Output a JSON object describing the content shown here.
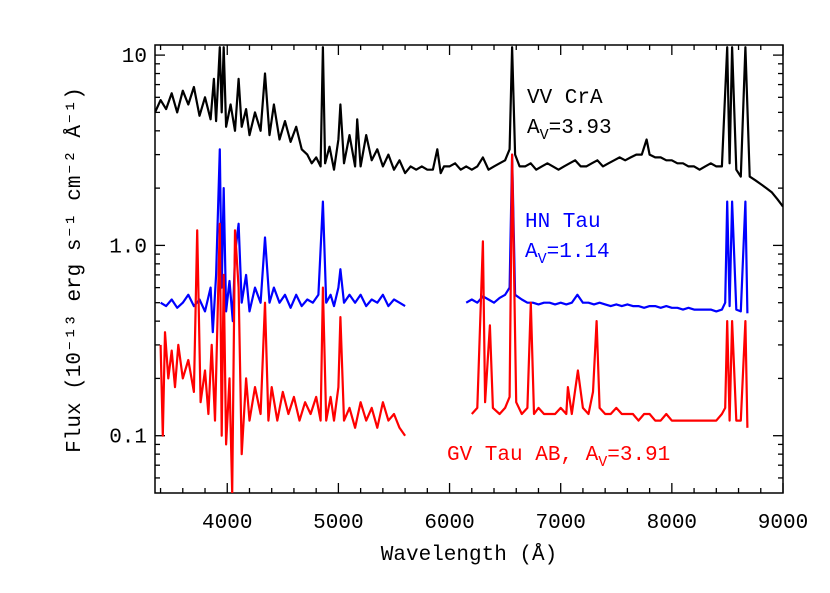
{
  "chart_data": {
    "type": "line",
    "xlabel": "Wavelength (Å)",
    "ylabel": "Flux (10⁻¹³ erg s⁻¹ cm⁻² Å⁻¹)",
    "xlim": [
      3350,
      9000
    ],
    "ylim": [
      0.05,
      11.3
    ],
    "ylog": true,
    "xticks": [
      4000,
      5000,
      6000,
      7000,
      8000,
      9000
    ],
    "xminorticks": [
      3400,
      3600,
      3800,
      4200,
      4400,
      4600,
      4800,
      5200,
      5400,
      5600,
      5800,
      6200,
      6400,
      6600,
      6800,
      7200,
      7400,
      7600,
      7800,
      8200,
      8400,
      8600,
      8800
    ],
    "yticks": [
      10,
      {
        "value": 1,
        "label": "1.0"
      },
      0.1
    ],
    "yminorticks": [
      0.06,
      0.07,
      0.08,
      0.09,
      0.2,
      0.3,
      0.4,
      0.5,
      0.6,
      0.7,
      0.8,
      0.9,
      2,
      3,
      4,
      5,
      6,
      7,
      8,
      9
    ],
    "series": [
      {
        "name": "VV CrA",
        "color": "#000000",
        "x": [
          3350,
          3400,
          3450,
          3500,
          3550,
          3600,
          3650,
          3700,
          3750,
          3800,
          3850,
          3880,
          3900,
          3933,
          3950,
          3968,
          3990,
          4030,
          4070,
          4102,
          4130,
          4170,
          4200,
          4250,
          4300,
          4340,
          4380,
          4420,
          4470,
          4520,
          4570,
          4620,
          4670,
          4720,
          4760,
          4800,
          4840,
          4861,
          4880,
          4920,
          4960,
          5000,
          5018,
          5050,
          5100,
          5150,
          5169,
          5200,
          5250,
          5300,
          5350,
          5400,
          5450,
          5500,
          5550,
          5600,
          5650,
          5700,
          5750,
          5800,
          5850,
          5890,
          5920,
          5950,
          6000,
          6050,
          6100,
          6150,
          6200,
          6250,
          6300,
          6350,
          6400,
          6450,
          6500,
          6540,
          6563,
          6590,
          6630,
          6680,
          6730,
          6780,
          6830,
          6880,
          6930,
          6980,
          7030,
          7080,
          7130,
          7180,
          7230,
          7280,
          7330,
          7380,
          7430,
          7480,
          7530,
          7580,
          7630,
          7680,
          7730,
          7773,
          7800,
          7850,
          7900,
          7950,
          8000,
          8050,
          8100,
          8150,
          8200,
          8250,
          8300,
          8350,
          8400,
          8450,
          8498,
          8520,
          8542,
          8580,
          8620,
          8662,
          8700,
          8750,
          8800,
          8850,
          8900,
          8950,
          9000
        ],
        "values": [
          5.0,
          5.8,
          5.2,
          6.3,
          5.0,
          6.5,
          5.5,
          6.8,
          4.8,
          6.0,
          4.6,
          7.5,
          4.5,
          11,
          5.0,
          11,
          4.2,
          5.5,
          4.0,
          7.5,
          4.2,
          5.2,
          3.8,
          5.0,
          4.0,
          8.0,
          3.8,
          5.5,
          3.6,
          4.5,
          3.5,
          4.2,
          3.2,
          3.0,
          2.7,
          2.9,
          2.6,
          11,
          2.7,
          3.3,
          2.5,
          3.6,
          5.5,
          2.7,
          3.8,
          2.6,
          4.6,
          2.6,
          3.8,
          2.8,
          3.2,
          2.6,
          3.0,
          2.5,
          2.8,
          2.4,
          2.6,
          2.5,
          2.6,
          2.5,
          2.5,
          3.2,
          2.4,
          2.6,
          2.6,
          2.7,
          2.5,
          2.6,
          2.5,
          2.6,
          2.9,
          2.5,
          2.6,
          2.7,
          2.8,
          3.2,
          11,
          3.0,
          2.6,
          2.6,
          2.7,
          2.5,
          2.6,
          2.7,
          2.6,
          2.5,
          2.6,
          2.7,
          2.8,
          2.6,
          2.6,
          2.7,
          2.8,
          2.6,
          2.7,
          2.8,
          2.9,
          2.8,
          2.9,
          3.0,
          3.0,
          3.6,
          3.0,
          2.9,
          2.9,
          2.8,
          2.8,
          2.7,
          2.7,
          2.6,
          2.6,
          2.5,
          2.6,
          2.7,
          2.6,
          2.6,
          11,
          2.7,
          11,
          2.5,
          2.3,
          11,
          2.3,
          2.2,
          2.1,
          2.0,
          1.9,
          1.75,
          1.6
        ]
      },
      {
        "name": "HN Tau",
        "color": "#0000ff",
        "x": [
          3400,
          3450,
          3500,
          3550,
          3600,
          3650,
          3700,
          3750,
          3800,
          3850,
          3870,
          3900,
          3933,
          3950,
          3968,
          3990,
          4020,
          4050,
          4070,
          4102,
          4130,
          4170,
          4200,
          4250,
          4300,
          4340,
          4380,
          4420,
          4470,
          4520,
          4570,
          4620,
          4670,
          4720,
          4770,
          4820,
          4861,
          4890,
          4930,
          4960,
          5000,
          5018,
          5050,
          5100,
          5150,
          5200,
          5250,
          5300,
          5350,
          5400,
          5450,
          5500,
          5550,
          5600,
          5800,
          6150,
          6200,
          6250,
          6300,
          6350,
          6400,
          6450,
          6500,
          6540,
          6563,
          6590,
          6650,
          6700,
          6750,
          6800,
          6850,
          6900,
          6950,
          7000,
          7050,
          7100,
          7150,
          7200,
          7250,
          7300,
          7350,
          7400,
          7450,
          7500,
          7550,
          7600,
          7650,
          7700,
          7750,
          7800,
          7850,
          7900,
          7950,
          8000,
          8050,
          8100,
          8150,
          8200,
          8250,
          8300,
          8350,
          8400,
          8450,
          8480,
          8498,
          8520,
          8542,
          8580,
          8620,
          8662,
          8680
        ],
        "values": [
          0.5,
          0.48,
          0.52,
          0.47,
          0.5,
          0.55,
          0.48,
          0.52,
          0.45,
          0.6,
          0.35,
          0.7,
          3.2,
          0.6,
          2.0,
          0.45,
          0.65,
          0.4,
          0.9,
          1.3,
          0.5,
          0.7,
          0.45,
          0.6,
          0.5,
          1.1,
          0.5,
          0.6,
          0.5,
          0.55,
          0.47,
          0.55,
          0.48,
          0.52,
          0.5,
          0.55,
          1.7,
          0.5,
          0.55,
          0.48,
          0.6,
          0.75,
          0.5,
          0.55,
          0.5,
          0.55,
          0.48,
          0.52,
          0.5,
          0.55,
          0.48,
          0.52,
          0.5,
          0.48,
          null,
          0.5,
          0.52,
          0.5,
          0.54,
          0.52,
          0.5,
          0.53,
          0.55,
          0.6,
          3.0,
          0.55,
          0.52,
          0.5,
          0.5,
          0.49,
          0.5,
          0.5,
          0.49,
          0.5,
          0.49,
          0.5,
          0.55,
          0.5,
          0.5,
          0.49,
          0.5,
          0.49,
          0.48,
          0.49,
          0.48,
          0.49,
          0.48,
          0.48,
          0.47,
          0.48,
          0.48,
          0.47,
          0.48,
          0.47,
          0.47,
          0.46,
          0.47,
          0.46,
          0.46,
          0.46,
          0.46,
          0.45,
          0.46,
          0.5,
          1.7,
          0.48,
          1.7,
          0.46,
          0.45,
          1.7,
          0.44
        ]
      },
      {
        "name": "GV Tau AB",
        "color": "#ff0000",
        "x": [
          3400,
          3420,
          3440,
          3470,
          3500,
          3530,
          3560,
          3600,
          3650,
          3700,
          3730,
          3760,
          3800,
          3830,
          3860,
          3890,
          3910,
          3933,
          3950,
          3968,
          3990,
          4020,
          4045,
          4070,
          4102,
          4130,
          4170,
          4200,
          4250,
          4300,
          4340,
          4370,
          4400,
          4450,
          4500,
          4550,
          4600,
          4650,
          4700,
          4750,
          4800,
          4840,
          4861,
          4890,
          4930,
          4960,
          5000,
          5018,
          5050,
          5100,
          5150,
          5200,
          5250,
          5300,
          5350,
          5400,
          5450,
          5500,
          5550,
          5600,
          5800,
          6200,
          6250,
          6300,
          6320,
          6363,
          6390,
          6450,
          6500,
          6540,
          6563,
          6600,
          6650,
          6700,
          6731,
          6760,
          6800,
          6850,
          6900,
          6950,
          7000,
          7050,
          7065,
          7100,
          7155,
          7200,
          7250,
          7291,
          7323,
          7350,
          7400,
          7450,
          7500,
          7550,
          7600,
          7650,
          7700,
          7750,
          7800,
          7850,
          7900,
          7950,
          8000,
          8050,
          8100,
          8150,
          8200,
          8250,
          8300,
          8350,
          8400,
          8450,
          8480,
          8498,
          8520,
          8542,
          8580,
          8620,
          8662,
          8680
        ],
        "values": [
          0.3,
          0.1,
          0.35,
          0.2,
          0.28,
          0.18,
          0.3,
          0.2,
          0.25,
          0.17,
          1.2,
          0.15,
          0.22,
          0.13,
          0.3,
          0.12,
          0.35,
          1.3,
          0.1,
          0.7,
          0.09,
          0.2,
          0.05,
          1.2,
          0.6,
          0.08,
          0.2,
          0.12,
          0.18,
          0.13,
          0.5,
          0.12,
          0.18,
          0.12,
          0.17,
          0.13,
          0.16,
          0.12,
          0.15,
          0.13,
          0.16,
          0.12,
          0.6,
          0.12,
          0.16,
          0.12,
          0.18,
          0.42,
          0.12,
          0.14,
          0.11,
          0.15,
          0.12,
          0.14,
          0.11,
          0.15,
          0.12,
          0.13,
          0.11,
          0.1,
          null,
          0.13,
          0.14,
          1.05,
          0.15,
          0.38,
          0.14,
          0.13,
          0.14,
          0.16,
          3.0,
          0.15,
          0.13,
          0.14,
          0.5,
          0.13,
          0.14,
          0.13,
          0.13,
          0.13,
          0.14,
          0.13,
          0.18,
          0.13,
          0.22,
          0.14,
          0.13,
          0.17,
          0.4,
          0.14,
          0.13,
          0.13,
          0.14,
          0.13,
          0.13,
          0.13,
          0.12,
          0.13,
          0.13,
          0.12,
          0.12,
          0.13,
          0.12,
          0.12,
          0.12,
          0.12,
          0.12,
          0.12,
          0.12,
          0.12,
          0.12,
          0.13,
          0.14,
          0.4,
          0.12,
          0.4,
          0.12,
          0.12,
          0.4,
          0.11
        ]
      }
    ],
    "annotations": [
      {
        "color": "#000000",
        "lines": [
          [
            "VV CrA"
          ],
          [
            "A",
            "V",
            "=3.93"
          ]
        ]
      },
      {
        "color": "#0000ff",
        "lines": [
          [
            "HN Tau"
          ],
          [
            "A",
            "V",
            "=1.14"
          ]
        ]
      },
      {
        "color": "#ff0000",
        "lines": [
          [
            "GV Tau AB, A",
            "V",
            "=3.91"
          ]
        ]
      }
    ]
  }
}
